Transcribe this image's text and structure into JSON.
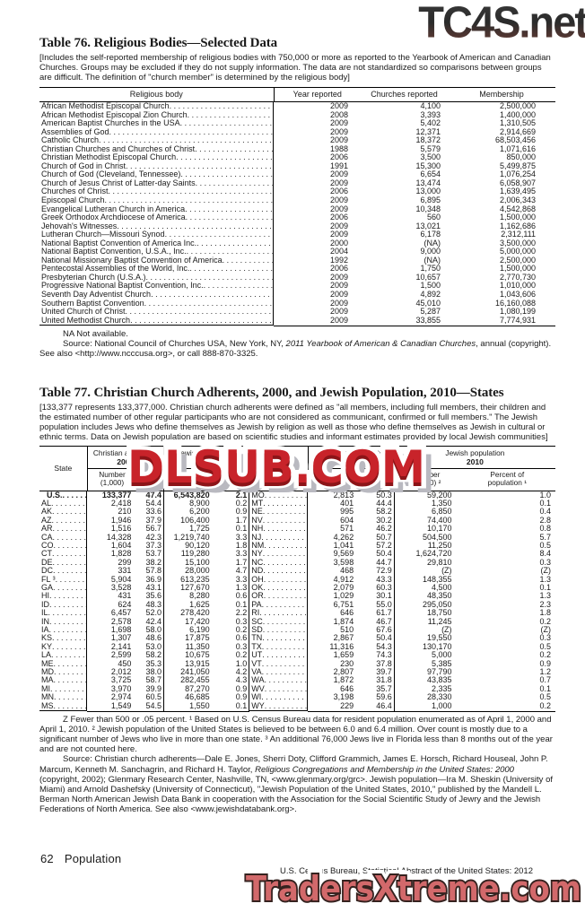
{
  "watermarks": {
    "top_right": "TC4S.net",
    "center": "DLSUB.COM",
    "bottom": "TradersXtreme.com"
  },
  "colors": {
    "watermark_top_dark": "#2e2e2e",
    "watermark_top_maroon": "#7a4a42",
    "watermark_center_red": "#c8232a",
    "watermark_center_dark_red": "#8c1418",
    "watermark_center_shadow": "#b9b9c0",
    "watermark_bottom_salmon": "#d2696b",
    "watermark_bottom_outline": "#35221f",
    "watermark_bottom_glow": "#ffffff",
    "text": "#1a1a1a"
  },
  "table76": {
    "title": "Table 76. Religious Bodies—Selected Data",
    "note": "[Includes the self-reported membership of religious bodies with 750,000 or more as reported to the Yearbook of American and Canadian Churches. Groups may be excluded if they do not supply information. The data are not standardized so comparisons between groups are difficult. The definition of \"church member\" is determined by the religious body]",
    "columns": [
      "Religious body",
      "Year reported",
      "Churches reported",
      "Membership"
    ],
    "rows": [
      {
        "body": "African Methodist Episcopal Church",
        "year": "2009",
        "churches": "4,100",
        "membership": "2,500,000"
      },
      {
        "body": "African Methodist Episcopal Zion Church",
        "year": "2008",
        "churches": "3,393",
        "membership": "1,400,000"
      },
      {
        "body": "American Baptist Churches in the USA",
        "year": "2009",
        "churches": "5,402",
        "membership": "1,310,505"
      },
      {
        "body": "Assemblies of God",
        "year": "2009",
        "churches": "12,371",
        "membership": "2,914,669"
      },
      {
        "body": "Catholic Church",
        "year": "2009",
        "churches": "18,372",
        "membership": "68,503,456"
      },
      {
        "body": "Christian Churches and Churches of Christ",
        "year": "1988",
        "churches": "5,579",
        "membership": "1,071,616"
      },
      {
        "body": "Christian Methodist Episcopal Church",
        "year": "2006",
        "churches": "3,500",
        "membership": "850,000"
      },
      {
        "body": "Church of God in Christ",
        "year": "1991",
        "churches": "15,300",
        "membership": "5,499,875"
      },
      {
        "body": "Church of God (Cleveland, Tennessee)",
        "year": "2009",
        "churches": "6,654",
        "membership": "1,076,254"
      },
      {
        "body": "Church of Jesus Christ of Latter-day Saints",
        "year": "2009",
        "churches": "13,474",
        "membership": "6,058,907"
      },
      {
        "body": "Churches of Christ",
        "year": "2006",
        "churches": "13,000",
        "membership": "1,639,495"
      },
      {
        "body": "Episcopal Church",
        "year": "2009",
        "churches": "6,895",
        "membership": "2,006,343"
      },
      {
        "body": "Evangelical Lutheran Church in America",
        "year": "2009",
        "churches": "10,348",
        "membership": "4,542,868"
      },
      {
        "body": "Greek Orthodox Archdiocese of America",
        "year": "2006",
        "churches": "560",
        "membership": "1,500,000"
      },
      {
        "body": "Jehovah's Witnesses",
        "year": "2009",
        "churches": "13,021",
        "membership": "1,162,686"
      },
      {
        "body": "Lutheran Church—Missouri Synod",
        "year": "2009",
        "churches": "6,178",
        "membership": "2,312,111"
      },
      {
        "body": "National Baptist Convention of America Inc.",
        "year": "2000",
        "churches": "(NA)",
        "membership": "3,500,000"
      },
      {
        "body": "National Baptist Convention, U.S.A., Inc.",
        "year": "2004",
        "churches": "9,000",
        "membership": "5,000,000"
      },
      {
        "body": "National Missionary Baptist Convention of America",
        "year": "1992",
        "churches": "(NA)",
        "membership": "2,500,000"
      },
      {
        "body": "Pentecostal Assemblies of the World, Inc.",
        "year": "2006",
        "churches": "1,750",
        "membership": "1,500,000"
      },
      {
        "body": "Presbyterian Church (U.S.A.)",
        "year": "2009",
        "churches": "10,657",
        "membership": "2,770,730"
      },
      {
        "body": "Progressive National Baptist Convention, Inc.",
        "year": "2009",
        "churches": "1,500",
        "membership": "1,010,000"
      },
      {
        "body": "Seventh Day Adventist Church",
        "year": "2009",
        "churches": "4,892",
        "membership": "1,043,606"
      },
      {
        "body": "Southern Baptist Convention",
        "year": "2009",
        "churches": "45,010",
        "membership": "16,160,088"
      },
      {
        "body": "United Church of Christ",
        "year": "2009",
        "churches": "5,287",
        "membership": "1,080,199"
      },
      {
        "body": "United Methodist Church",
        "year": "2009",
        "churches": "33,855",
        "membership": "7,774,931"
      }
    ],
    "na_note": "NA Not available.",
    "source_segments": [
      {
        "t": "Source: National Council of Churches USA, New York, NY, "
      },
      {
        "t": "2011 Yearbook of American & Canadian Churches",
        "i": true
      },
      {
        "t": ", annual (copyright). See also <http://www.ncccusa.org>, or call 888-870-3325."
      }
    ]
  },
  "table77": {
    "title": "Table 77. Christian Church Adherents, 2000, and Jewish Population, 2010—States",
    "note": "[133,377 represents 133,377,000. Christian church adherents were defined as \"all members, including full members, their children and the estimated number of other regular participants who are not considered as communicant, confirmed or full members.\" The Jewish population includes Jews who define themselves as Jewish by religion as well as those who define themselves as Jewish in cultural or ethnic terms. Data on Jewish population are based on scientific studies and informant estimates provided by local Jewish communities]",
    "header": {
      "state": "State",
      "christian_label": "Christian adherents",
      "christian_year": "2000",
      "jewish_label": "Jewish population",
      "jewish_year": "2010",
      "number_thousand": "Number (1,000)",
      "number_thousand_2": "Number (1,000) ²",
      "percent_population": "Percent of population ¹"
    },
    "rows_left": [
      {
        "s": "U.S.",
        "n1": "133,377",
        "p1": "47.4",
        "n2": "6,543,820",
        "p2": "2.1",
        "b": true
      },
      {
        "s": "AL",
        "n1": "2,418",
        "p1": "54.4",
        "n2": "8,900",
        "p2": "0.2"
      },
      {
        "s": "AK",
        "n1": "210",
        "p1": "33.6",
        "n2": "6,200",
        "p2": "0.9"
      },
      {
        "s": "AZ",
        "n1": "1,946",
        "p1": "37.9",
        "n2": "106,400",
        "p2": "1.7"
      },
      {
        "s": "AR",
        "n1": "1,516",
        "p1": "56.7",
        "n2": "1,725",
        "p2": "0.1"
      },
      {
        "s": "CA",
        "n1": "14,328",
        "p1": "42.3",
        "n2": "1,219,740",
        "p2": "3.3"
      },
      {
        "s": "CO",
        "n1": "1,604",
        "p1": "37.3",
        "n2": "90,120",
        "p2": "1.8"
      },
      {
        "s": "CT",
        "n1": "1,828",
        "p1": "53.7",
        "n2": "119,280",
        "p2": "3.3"
      },
      {
        "s": "DE",
        "n1": "299",
        "p1": "38.2",
        "n2": "15,100",
        "p2": "1.7"
      },
      {
        "s": "DC",
        "n1": "331",
        "p1": "57.8",
        "n2": "28,000",
        "p2": "4.7"
      },
      {
        "s": "FL ³",
        "n1": "5,904",
        "p1": "36.9",
        "n2": "613,235",
        "p2": "3.3"
      },
      {
        "s": "GA",
        "n1": "3,528",
        "p1": "43.1",
        "n2": "127,670",
        "p2": "1.3"
      },
      {
        "s": "HI",
        "n1": "431",
        "p1": "35.6",
        "n2": "8,280",
        "p2": "0.6"
      },
      {
        "s": "ID",
        "n1": "624",
        "p1": "48.3",
        "n2": "1,625",
        "p2": "0.1"
      },
      {
        "s": "IL",
        "n1": "6,457",
        "p1": "52.0",
        "n2": "278,420",
        "p2": "2.2"
      },
      {
        "s": "IN",
        "n1": "2,578",
        "p1": "42.4",
        "n2": "17,420",
        "p2": "0.3"
      },
      {
        "s": "IA",
        "n1": "1,698",
        "p1": "58.0",
        "n2": "6,190",
        "p2": "0.2"
      },
      {
        "s": "KS",
        "n1": "1,307",
        "p1": "48.6",
        "n2": "17,875",
        "p2": "0.6"
      },
      {
        "s": "KY",
        "n1": "2,141",
        "p1": "53.0",
        "n2": "11,350",
        "p2": "0.3"
      },
      {
        "s": "LA",
        "n1": "2,599",
        "p1": "58.2",
        "n2": "10,675",
        "p2": "0.2"
      },
      {
        "s": "ME",
        "n1": "450",
        "p1": "35.3",
        "n2": "13,915",
        "p2": "1.0"
      },
      {
        "s": "MD",
        "n1": "2,012",
        "p1": "38.0",
        "n2": "241,050",
        "p2": "4.2"
      },
      {
        "s": "MA",
        "n1": "3,725",
        "p1": "58.7",
        "n2": "282,455",
        "p2": "4.3"
      },
      {
        "s": "MI",
        "n1": "3,970",
        "p1": "39.9",
        "n2": "87,270",
        "p2": "0.9"
      },
      {
        "s": "MN",
        "n1": "2,974",
        "p1": "60.5",
        "n2": "46,685",
        "p2": "0.9"
      },
      {
        "s": "MS",
        "n1": "1,549",
        "p1": "54.5",
        "n2": "1,550",
        "p2": "0.1"
      }
    ],
    "rows_right": [
      {
        "s": "MO",
        "n1": "2,813",
        "p1": "50.3",
        "n2": "59,200",
        "p2": "1.0"
      },
      {
        "s": "MT",
        "n1": "401",
        "p1": "44.4",
        "n2": "1,350",
        "p2": "0.1"
      },
      {
        "s": "NE",
        "n1": "995",
        "p1": "58.2",
        "n2": "6,850",
        "p2": "0.4"
      },
      {
        "s": "NV",
        "n1": "604",
        "p1": "30.2",
        "n2": "74,400",
        "p2": "2.8"
      },
      {
        "s": "NH",
        "n1": "571",
        "p1": "46.2",
        "n2": "10,170",
        "p2": "0.8"
      },
      {
        "s": "NJ",
        "n1": "4,262",
        "p1": "50.7",
        "n2": "504,500",
        "p2": "5.7"
      },
      {
        "s": "NM",
        "n1": "1,041",
        "p1": "57.2",
        "n2": "11,250",
        "p2": "0.5"
      },
      {
        "s": "NY",
        "n1": "9,569",
        "p1": "50.4",
        "n2": "1,624,720",
        "p2": "8.4"
      },
      {
        "s": "NC",
        "n1": "3,598",
        "p1": "44.7",
        "n2": "29,810",
        "p2": "0.3"
      },
      {
        "s": "ND",
        "n1": "468",
        "p1": "72.9",
        "n2": "(Z)",
        "p2": "(Z)"
      },
      {
        "s": "OH",
        "n1": "4,912",
        "p1": "43.3",
        "n2": "148,355",
        "p2": "1.3"
      },
      {
        "s": "OK",
        "n1": "2,079",
        "p1": "60.3",
        "n2": "4,500",
        "p2": "0.1"
      },
      {
        "s": "OR",
        "n1": "1,029",
        "p1": "30.1",
        "n2": "48,350",
        "p2": "1.3"
      },
      {
        "s": "PA",
        "n1": "6,751",
        "p1": "55.0",
        "n2": "295,050",
        "p2": "2.3"
      },
      {
        "s": "RI",
        "n1": "646",
        "p1": "61.7",
        "n2": "18,750",
        "p2": "1.8"
      },
      {
        "s": "SC",
        "n1": "1,874",
        "p1": "46.7",
        "n2": "11,245",
        "p2": "0.2"
      },
      {
        "s": "SD",
        "n1": "510",
        "p1": "67.6",
        "n2": "(Z)",
        "p2": "(Z)"
      },
      {
        "s": "TN",
        "n1": "2,867",
        "p1": "50.4",
        "n2": "19,550",
        "p2": "0.3"
      },
      {
        "s": "TX",
        "n1": "11,316",
        "p1": "54.3",
        "n2": "130,170",
        "p2": "0.5"
      },
      {
        "s": "UT",
        "n1": "1,659",
        "p1": "74.3",
        "n2": "5,000",
        "p2": "0.2"
      },
      {
        "s": "VT",
        "n1": "230",
        "p1": "37.8",
        "n2": "5,385",
        "p2": "0.9"
      },
      {
        "s": "VA",
        "n1": "2,807",
        "p1": "39.7",
        "n2": "97,790",
        "p2": "1.2"
      },
      {
        "s": "WA",
        "n1": "1,872",
        "p1": "31.8",
        "n2": "43,835",
        "p2": "0.7"
      },
      {
        "s": "WV",
        "n1": "646",
        "p1": "35.7",
        "n2": "2,335",
        "p2": "0.1"
      },
      {
        "s": "WI",
        "n1": "3,198",
        "p1": "59.6",
        "n2": "28,330",
        "p2": "0.5"
      },
      {
        "s": "WY",
        "n1": "229",
        "p1": "46.4",
        "n2": "1,000",
        "p2": "0.2"
      }
    ],
    "footnote": "Z Fewer than 500 or .05 percent. ¹ Based on U.S. Census Bureau data for resident population enumerated as of April 1, 2000 and April 1, 2010. ² Jewish population of the United States is believed to be between 6.0 and 6.4 million. Over count is mostly due to a significant number of Jews who live in more than one state. ³ An additional 76,000 Jews live in Florida less than 8 months out of the year and are not counted here.",
    "source_segments": [
      {
        "t": "Source: Christian church adherents—Dale E. Jones, Sherri Doty, Clifford Grammich, James E. Horsch, Richard Houseal, John P. Marcum, Kenneth M. Sanchagrin, and Richard H. Taylor, "
      },
      {
        "t": "Religious Congregations and Membership in the United States: 2000",
        "i": true
      },
      {
        "t": " (copyright, 2002); Glenmary Research Center, Nashville, TN, <www.glenmary.org/grc>. Jewish population—Ira M. Sheskin (University of Miami) and Arnold Dashefsky (University of Connecticut), \"Jewish Population of the United States, 2010,\" published by the Mandell L. Berman North American Jewish Data Bank in cooperation with the Association for the Social Scientific Study of Jewry and the Jewish Federations of North America. See also <www.jewishdatabank.org>."
      }
    ]
  },
  "footer": {
    "page_number": "62",
    "section": "Population",
    "source_line": "U.S. Census Bureau, Statistical Abstract of the United States: 2012"
  }
}
